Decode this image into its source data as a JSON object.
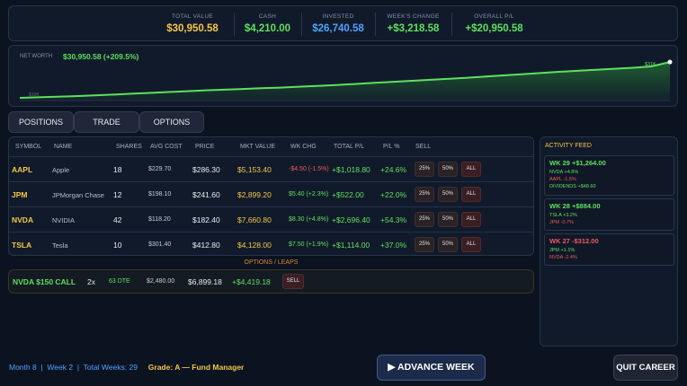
{
  "summary": [
    {
      "label": "TOTAL VALUE",
      "value": "$30,950.58",
      "color": "#f3c648"
    },
    {
      "label": "CASH",
      "value": "$4,210.00",
      "color": "#5ee05e"
    },
    {
      "label": "INVESTED",
      "value": "$26,740.58",
      "color": "#4fa3ff"
    },
    {
      "label": "WEEK'S CHANGE",
      "value": "+$3,218.58",
      "color": "#5ee05e"
    },
    {
      "label": "OVERALL P/L",
      "value": "+$20,950.58",
      "color": "#5ee05e"
    }
  ],
  "chart": {
    "label": "NET WORTH",
    "value_text": "$30,950.58 (+209.5%)",
    "end_label": "$31K",
    "start_label": "$10K",
    "color": "#5ee05e"
  },
  "chart_data": {
    "type": "area",
    "title": "",
    "series": [
      {
        "values": [
          10000,
          10300,
          10700,
          11000,
          11400,
          11900,
          12400,
          12900,
          13400,
          13900,
          14400,
          14800,
          15200,
          15600,
          16000,
          16500,
          17000,
          17500,
          18100,
          18700,
          19300,
          19900,
          20500,
          21100,
          21700,
          22400,
          23100,
          23800,
          24500,
          25200,
          25800,
          26400,
          27000,
          27600,
          28400,
          30950.58
        ]
      }
    ],
    "ylim": [
      10000,
      31000
    ],
    "grid": false
  },
  "tabs": [
    "POSITIONS",
    "TRADE",
    "OPTIONS"
  ],
  "table": {
    "headers": [
      "SYMBOL",
      "NAME",
      "SHARES",
      "AVG COST",
      "PRICE",
      "MKT VALUE",
      "WK CHG",
      "TOTAL P/L",
      "P/L %",
      "SELL"
    ],
    "rows": [
      {
        "symbol": "AAPL",
        "name": "Apple",
        "shares": "18",
        "avg_cost": "$229.70",
        "price": "$286.30",
        "mkt_value": "$5,153.40",
        "wk_chg": "-$4.50 (-1.5%)",
        "wk_dir": "down",
        "total_pl": "+$1,018.80",
        "pl_pct": "+24.6%"
      },
      {
        "symbol": "JPM",
        "name": "JPMorgan Chase",
        "shares": "12",
        "avg_cost": "$198.10",
        "price": "$241.60",
        "mkt_value": "$2,899.20",
        "wk_chg": "$5.40 (+2.3%)",
        "wk_dir": "up",
        "total_pl": "+$522.00",
        "pl_pct": "+22.0%"
      },
      {
        "symbol": "NVDA",
        "name": "NVIDIA",
        "shares": "42",
        "avg_cost": "$118.20",
        "price": "$182.40",
        "mkt_value": "$7,660.80",
        "wk_chg": "$8.30 (+4.8%)",
        "wk_dir": "up",
        "total_pl": "+$2,696.40",
        "pl_pct": "+54.3%"
      },
      {
        "symbol": "TSLA",
        "name": "Tesla",
        "shares": "10",
        "avg_cost": "$301.40",
        "price": "$412.80",
        "mkt_value": "$4,128.00",
        "wk_chg": "$7.50 (+1.9%)",
        "wk_dir": "up",
        "total_pl": "+$1,114.00",
        "pl_pct": "+37.0%"
      }
    ],
    "sell_buttons": [
      "25%",
      "50%",
      "ALL"
    ]
  },
  "options": {
    "header": "OPTIONS / LEAPS",
    "row": {
      "contract": "NVDA $150 CALL",
      "qty": "2x",
      "dte": "63 DTE",
      "cost": "$2,480.00",
      "value": "$6,899.18",
      "pl": "+$4,419.18",
      "sell": "SELL"
    }
  },
  "feed": {
    "title": "ACTIVITY FEED",
    "items": [
      {
        "header": "WK 29  +$1,264.00",
        "dir": "up",
        "lines": [
          {
            "text": "NVDA +4.8%",
            "dir": "up"
          },
          {
            "text": "AAPL -1.5%",
            "dir": "down"
          },
          {
            "text": "DIVIDENDS +$48.60",
            "dir": "up"
          }
        ]
      },
      {
        "header": "WK 28  +$884.00",
        "dir": "up",
        "lines": [
          {
            "text": "TSLA +3.2%",
            "dir": "up"
          },
          {
            "text": "JPM -0.7%",
            "dir": "down"
          }
        ]
      },
      {
        "header": "WK 27  -$312.00",
        "dir": "down",
        "lines": [
          {
            "text": "JPM +1.1%",
            "dir": "up"
          },
          {
            "text": "NVDA -2.4%",
            "dir": "down"
          }
        ]
      }
    ]
  },
  "footer": {
    "month": "Month 8",
    "week": "Week 2",
    "total_weeks": "Total Weeks: 29",
    "grade": "Grade: A — Fund Manager",
    "advance": "▶ ADVANCE WEEK",
    "quit": "QUIT CAREER"
  }
}
